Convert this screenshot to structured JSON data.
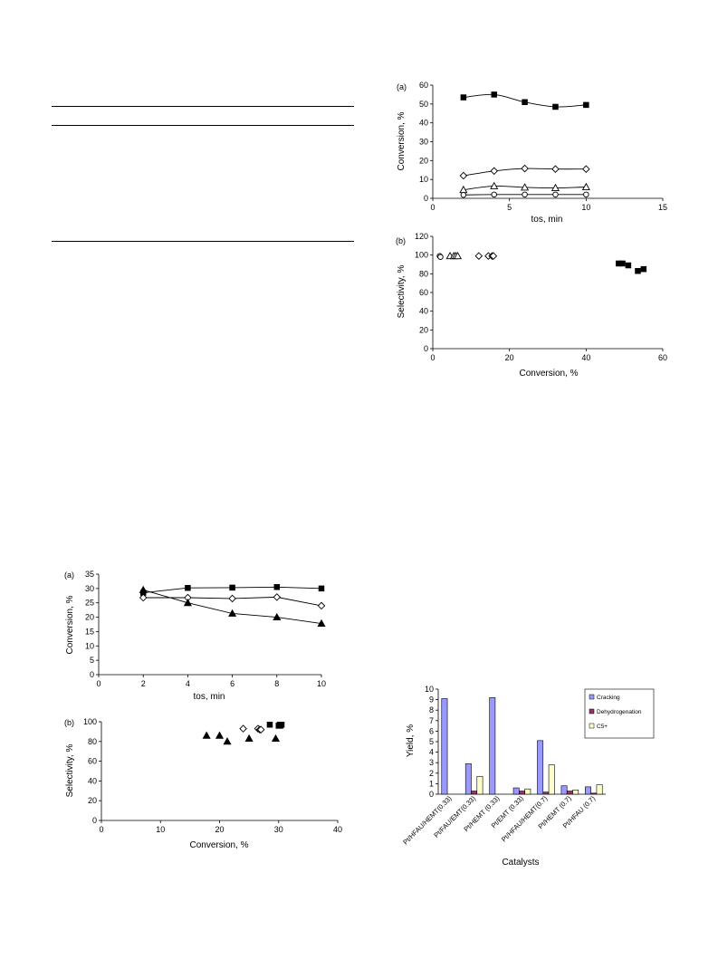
{
  "chart_data": [
    {
      "id": "fig1a",
      "type": "line",
      "panel_label": "(a)",
      "xlabel": "tos, min",
      "ylabel": "Conversion, %",
      "xlim": [
        0,
        15
      ],
      "xticks": [
        0,
        5,
        10,
        15
      ],
      "ylim": [
        0,
        60
      ],
      "yticks": [
        0,
        10,
        20,
        30,
        40,
        50,
        60
      ],
      "series": [
        {
          "marker": "square-filled",
          "x": [
            2,
            4,
            6,
            8,
            10
          ],
          "y": [
            53.5,
            55,
            51,
            48.5,
            49.5
          ]
        },
        {
          "marker": "diamond-open",
          "x": [
            2,
            4,
            6,
            8,
            10
          ],
          "y": [
            12,
            14.5,
            15.8,
            15.5,
            15.5
          ]
        },
        {
          "marker": "triangle-open",
          "x": [
            2,
            4,
            6,
            8,
            10
          ],
          "y": [
            4.5,
            6.5,
            5.8,
            5.5,
            6
          ]
        },
        {
          "marker": "circle-open",
          "x": [
            2,
            4,
            6,
            8,
            10
          ],
          "y": [
            1.8,
            2,
            2,
            2,
            2
          ]
        }
      ]
    },
    {
      "id": "fig1b",
      "type": "scatter",
      "panel_label": "(b)",
      "xlabel": "Conversion, %",
      "ylabel": "Selectivity, %",
      "xlim": [
        0,
        60
      ],
      "xticks": [
        0,
        20,
        40,
        60
      ],
      "ylim": [
        0,
        120
      ],
      "yticks": [
        0,
        20,
        40,
        60,
        80,
        100,
        120
      ],
      "series": [
        {
          "marker": "square-filled",
          "x": [
            48.5,
            49.5,
            51,
            53.5,
            55
          ],
          "y": [
            91,
            91,
            89,
            83,
            85
          ]
        },
        {
          "marker": "diamond-open",
          "x": [
            12,
            14.5,
            15.5,
            15.8
          ],
          "y": [
            99,
            99,
            99,
            99
          ]
        },
        {
          "marker": "triangle-open",
          "x": [
            4.5,
            5.5,
            6,
            6.5
          ],
          "y": [
            99,
            99,
            99,
            99
          ]
        },
        {
          "marker": "circle-open",
          "x": [
            1.8,
            2
          ],
          "y": [
            99,
            98
          ]
        }
      ]
    },
    {
      "id": "fig2a",
      "type": "line",
      "panel_label": "(a)",
      "xlabel": "tos, min",
      "ylabel": "Conversion, %",
      "xlim": [
        0,
        10
      ],
      "xticks": [
        0,
        2,
        4,
        6,
        8,
        10
      ],
      "ylim": [
        0,
        35
      ],
      "yticks": [
        0,
        5,
        10,
        15,
        20,
        25,
        30,
        35
      ],
      "series": [
        {
          "marker": "square-filled",
          "x": [
            2,
            4,
            6,
            8,
            10
          ],
          "y": [
            28.5,
            30.2,
            30.3,
            30.5,
            30
          ]
        },
        {
          "marker": "diamond-open",
          "x": [
            2,
            4,
            6,
            8,
            10
          ],
          "y": [
            26.8,
            26.8,
            26.5,
            27,
            24
          ]
        },
        {
          "marker": "triangle-filled",
          "x": [
            2,
            4,
            6,
            8,
            10
          ],
          "y": [
            29.5,
            25,
            21.3,
            20,
            17.8
          ]
        }
      ]
    },
    {
      "id": "fig2b",
      "type": "scatter",
      "panel_label": "(b)",
      "xlabel": "Conversion, %",
      "ylabel": "Selectivity, %",
      "xlim": [
        0,
        40
      ],
      "xticks": [
        0,
        10,
        20,
        30,
        40
      ],
      "ylim": [
        0,
        100
      ],
      "yticks": [
        0,
        20,
        40,
        60,
        80,
        100
      ],
      "series": [
        {
          "marker": "square-filled",
          "x": [
            28.5,
            30,
            30.2,
            30.3,
            30.5
          ],
          "y": [
            97,
            96,
            97,
            96,
            97
          ]
        },
        {
          "marker": "diamond-open",
          "x": [
            24,
            26.5,
            26.8,
            27
          ],
          "y": [
            93,
            93,
            92,
            92
          ]
        },
        {
          "marker": "triangle-filled",
          "x": [
            17.8,
            20,
            21.3,
            25,
            29.5
          ],
          "y": [
            86,
            86,
            80,
            83,
            83
          ]
        }
      ]
    },
    {
      "id": "fig3",
      "type": "bar",
      "xlabel": "Catalysts",
      "ylabel": "Yield, %",
      "ylim": [
        0,
        10
      ],
      "yticks": [
        0,
        1,
        2,
        3,
        4,
        5,
        6,
        7,
        8,
        9,
        10
      ],
      "categories": [
        "Pt/HFAU/HEMT(0.33)",
        "Pt/FAU/EMT(0.33)",
        "Pt/HEMT (0.33)",
        "Pt/EMT (0.33)",
        "Pt/HFAU/HEMT(0.7)",
        "Pt/HEMT (0.7)",
        "Pt/HFAU (0.7)"
      ],
      "series": [
        {
          "name": "Cracking",
          "color": "#9999ff",
          "values": [
            9.1,
            2.9,
            9.2,
            0.6,
            5.1,
            0.8,
            0.7
          ]
        },
        {
          "name": "Dehydrogenation",
          "color": "#993366",
          "values": [
            0,
            0.3,
            0,
            0.3,
            0.2,
            0.3,
            0.1
          ]
        },
        {
          "name": "C5+",
          "color": "#ffffcc",
          "values": [
            0,
            1.7,
            0,
            0.5,
            2.8,
            0.4,
            0.9
          ]
        }
      ],
      "legend_position": "top-right"
    }
  ]
}
